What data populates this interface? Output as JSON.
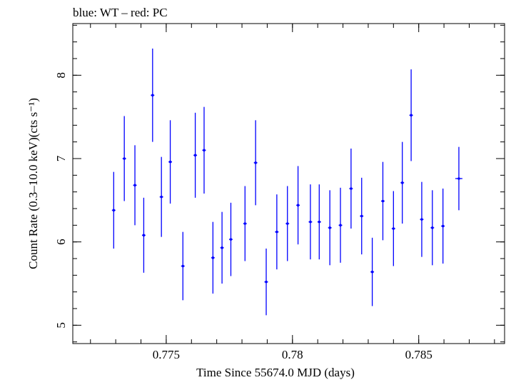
{
  "chart_data": {
    "type": "scatter",
    "title": "blue: WT – red: PC",
    "xlabel": "Time Since 55674.0 MJD (days)",
    "ylabel": "Count Rate (0.3–10.0 keV)(cts s⁻¹)",
    "xlim": [
      0.7713,
      0.7884
    ],
    "ylim": [
      4.78,
      8.62
    ],
    "x_ticks": [
      0.775,
      0.78,
      0.785
    ],
    "x_tick_labels": [
      "0.775",
      "0.78",
      "0.785"
    ],
    "x_minor_step": 0.001,
    "y_ticks": [
      5,
      6,
      7,
      8
    ],
    "y_tick_labels": [
      "5",
      "6",
      "7",
      "8"
    ],
    "y_minor_step": 0.2,
    "grid": false,
    "series": [
      {
        "color": "#0000ff",
        "points": [
          {
            "x": 0.77292,
            "xerr": 7e-05,
            "y": 6.38,
            "yerr": 0.46
          },
          {
            "x": 0.77334,
            "xerr": 7e-05,
            "y": 7.0,
            "yerr": 0.51
          },
          {
            "x": 0.77376,
            "xerr": 7e-05,
            "y": 6.68,
            "yerr": 0.48
          },
          {
            "x": 0.77411,
            "xerr": 7e-05,
            "y": 6.08,
            "yerr": 0.45
          },
          {
            "x": 0.77446,
            "xerr": 7e-05,
            "y": 7.76,
            "yerr": 0.56
          },
          {
            "x": 0.77481,
            "xerr": 7e-05,
            "y": 6.54,
            "yerr": 0.48
          },
          {
            "x": 0.77516,
            "xerr": 7e-05,
            "y": 6.96,
            "yerr": 0.5
          },
          {
            "x": 0.77566,
            "xerr": 7e-05,
            "y": 5.71,
            "yerr": 0.41
          },
          {
            "x": 0.77615,
            "xerr": 7e-05,
            "y": 7.04,
            "yerr": 0.51
          },
          {
            "x": 0.7765,
            "xerr": 7e-05,
            "y": 7.1,
            "yerr": 0.52
          },
          {
            "x": 0.77685,
            "xerr": 7e-05,
            "y": 5.81,
            "yerr": 0.43
          },
          {
            "x": 0.77721,
            "xerr": 7e-05,
            "y": 5.93,
            "yerr": 0.43
          },
          {
            "x": 0.77756,
            "xerr": 7e-05,
            "y": 6.03,
            "yerr": 0.44
          },
          {
            "x": 0.77812,
            "xerr": 7e-05,
            "y": 6.22,
            "yerr": 0.45
          },
          {
            "x": 0.77854,
            "xerr": 7e-05,
            "y": 6.95,
            "yerr": 0.51
          },
          {
            "x": 0.77896,
            "xerr": 7e-05,
            "y": 5.52,
            "yerr": 0.4
          },
          {
            "x": 0.77938,
            "xerr": 7e-05,
            "y": 6.12,
            "yerr": 0.45
          },
          {
            "x": 0.7798,
            "xerr": 7e-05,
            "y": 6.22,
            "yerr": 0.45
          },
          {
            "x": 0.78022,
            "xerr": 7e-05,
            "y": 6.44,
            "yerr": 0.47
          },
          {
            "x": 0.78071,
            "xerr": 7e-05,
            "y": 6.24,
            "yerr": 0.45
          },
          {
            "x": 0.78106,
            "xerr": 7e-05,
            "y": 6.24,
            "yerr": 0.45
          },
          {
            "x": 0.78148,
            "xerr": 7e-05,
            "y": 6.17,
            "yerr": 0.45
          },
          {
            "x": 0.7819,
            "xerr": 7e-05,
            "y": 6.2,
            "yerr": 0.45
          },
          {
            "x": 0.78232,
            "xerr": 7e-05,
            "y": 6.64,
            "yerr": 0.48
          },
          {
            "x": 0.78274,
            "xerr": 7e-05,
            "y": 6.31,
            "yerr": 0.46
          },
          {
            "x": 0.78316,
            "xerr": 7e-05,
            "y": 5.64,
            "yerr": 0.41
          },
          {
            "x": 0.78358,
            "xerr": 7e-05,
            "y": 6.49,
            "yerr": 0.47
          },
          {
            "x": 0.784,
            "xerr": 7e-05,
            "y": 6.16,
            "yerr": 0.45
          },
          {
            "x": 0.78435,
            "xerr": 7e-05,
            "y": 6.71,
            "yerr": 0.49
          },
          {
            "x": 0.7847,
            "xerr": 7e-05,
            "y": 7.52,
            "yerr": 0.55
          },
          {
            "x": 0.78512,
            "xerr": 7e-05,
            "y": 6.27,
            "yerr": 0.45
          },
          {
            "x": 0.78554,
            "xerr": 7e-05,
            "y": 6.17,
            "yerr": 0.45
          },
          {
            "x": 0.78596,
            "xerr": 7e-05,
            "y": 6.19,
            "yerr": 0.45
          },
          {
            "x": 0.78659,
            "xerr": 0.00014,
            "y": 6.76,
            "yerr": 0.38
          }
        ]
      }
    ]
  }
}
